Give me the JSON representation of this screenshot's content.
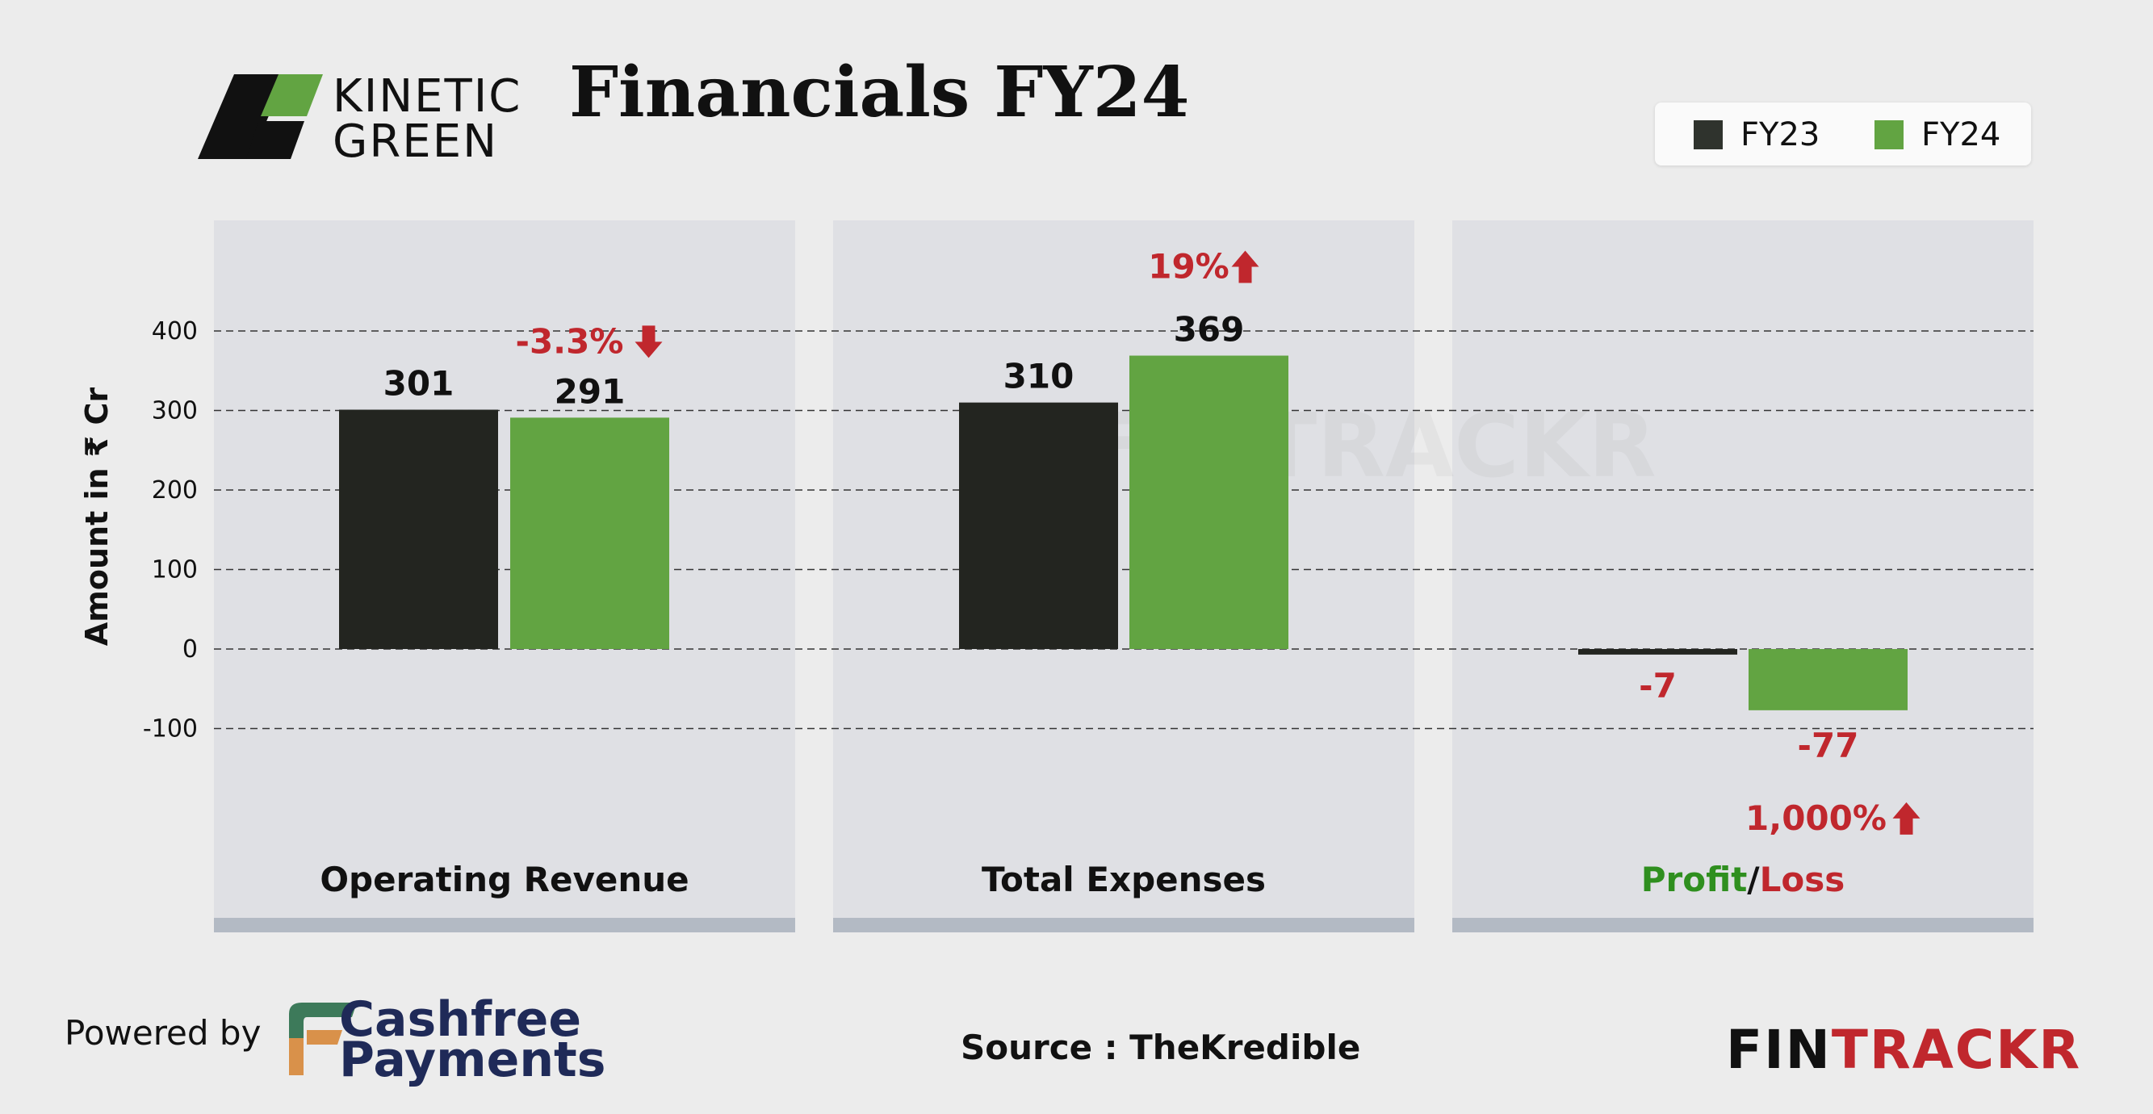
{
  "brand": {
    "line1": "KINETIC",
    "line2": "GREEN"
  },
  "title": "Financials FY24",
  "legend": [
    {
      "label": "FY23",
      "color": "#2f332d"
    },
    {
      "label": "FY24",
      "color": "#62a442"
    }
  ],
  "colors": {
    "fy23": "#232520",
    "fy24": "#62a442",
    "negative": "#c0272d",
    "profit": "#2f8f1f",
    "panel": "#dfe0e4",
    "panel_bottom": "#b3bac4"
  },
  "chart_data": {
    "type": "bar",
    "ylabel": "Amount in ₹ Cr",
    "ylim": [
      -100,
      400
    ],
    "yticks": [
      "400",
      "300",
      "200",
      "100",
      "0",
      "-100"
    ],
    "grid": "dashed",
    "legend_position": "top-right",
    "categories": [
      "Operating Revenue",
      "Total Expenses",
      "Profit/Loss"
    ],
    "series": [
      {
        "name": "FY23",
        "values": [
          301,
          310,
          -7
        ]
      },
      {
        "name": "FY24",
        "values": [
          291,
          369,
          -77
        ]
      }
    ],
    "data_labels": {
      "FY23": [
        "301",
        "310",
        "-7"
      ],
      "FY24": [
        "291",
        "369",
        "-77"
      ]
    },
    "changes": [
      {
        "text": "-3.3%",
        "direction": "down"
      },
      {
        "text": "19%",
        "direction": "up"
      },
      {
        "text": "1,000%",
        "direction": "up"
      }
    ],
    "profit_loss_label": {
      "profit": "Profit",
      "sep": "/",
      "loss": "Loss"
    }
  },
  "footer": {
    "powered_by": "Powered by",
    "cashfree_line1": "Cashfree",
    "cashfree_line2": "Payments",
    "source": "Source : TheKredible",
    "fintrackr": {
      "part1": "FIN",
      "part2": "TRACKR"
    }
  }
}
